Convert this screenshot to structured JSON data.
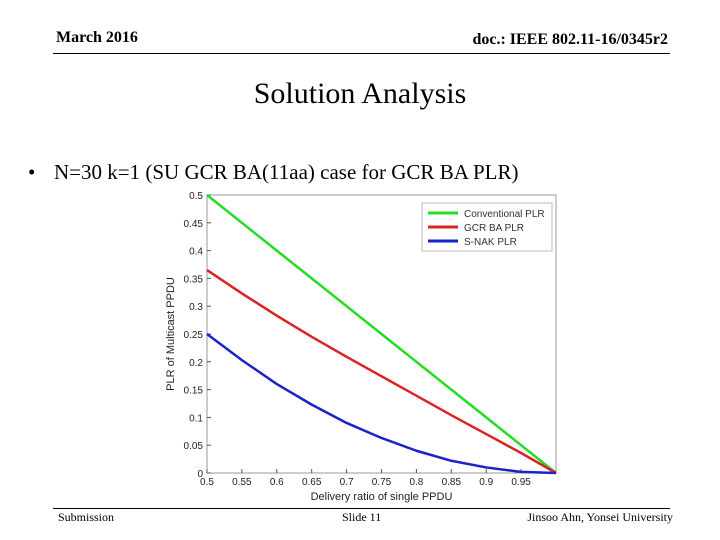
{
  "header": {
    "date": "March 2016",
    "doc": "doc.: IEEE 802.11-16/0345r2"
  },
  "slide": {
    "title": "Solution Analysis",
    "bullet_marker": "•",
    "bullet": "N=30 k=1 (SU GCR BA(11aa) case for GCR BA PLR)"
  },
  "footer": {
    "left": "Submission",
    "center": "Slide 11",
    "right": "Jinsoo Ahn, Yonsei University"
  },
  "colors": {
    "conventional": "#22dd22",
    "gcr_ba": "#dd2222",
    "snak": "#1a22cc"
  },
  "chart_data": {
    "type": "line",
    "title": "",
    "xlabel": "Delivery ratio of single PPDU",
    "ylabel": "PLR of Multicast PPDU",
    "xlim": [
      0.5,
      1.0
    ],
    "ylim": [
      0,
      0.5
    ],
    "xticks": [
      "0.5",
      "0.55",
      "0.6",
      "0.65",
      "0.7",
      "0.75",
      "0.8",
      "0.85",
      "0.9",
      "0.95"
    ],
    "yticks": [
      "0",
      "0.05",
      "0.1",
      "0.15",
      "0.2",
      "0.25",
      "0.3",
      "0.35",
      "0.4",
      "0.45",
      "0.5"
    ],
    "legend_position": "top-right",
    "x": [
      0.5,
      0.55,
      0.6,
      0.65,
      0.7,
      0.75,
      0.8,
      0.85,
      0.9,
      0.95,
      1.0
    ],
    "series": [
      {
        "name": "Conventional PLR",
        "color": "#22dd22",
        "values": [
          0.5,
          0.45,
          0.4,
          0.35,
          0.3,
          0.25,
          0.2,
          0.15,
          0.1,
          0.05,
          0.0
        ]
      },
      {
        "name": "GCR BA PLR",
        "color": "#dd2222",
        "values": [
          0.365,
          0.323,
          0.283,
          0.245,
          0.209,
          0.174,
          0.139,
          0.104,
          0.07,
          0.036,
          0.0
        ]
      },
      {
        "name": "S-NAK PLR",
        "color": "#1a22cc",
        "values": [
          0.25,
          0.203,
          0.16,
          0.123,
          0.09,
          0.063,
          0.04,
          0.022,
          0.01,
          0.002,
          0.0
        ]
      }
    ]
  }
}
